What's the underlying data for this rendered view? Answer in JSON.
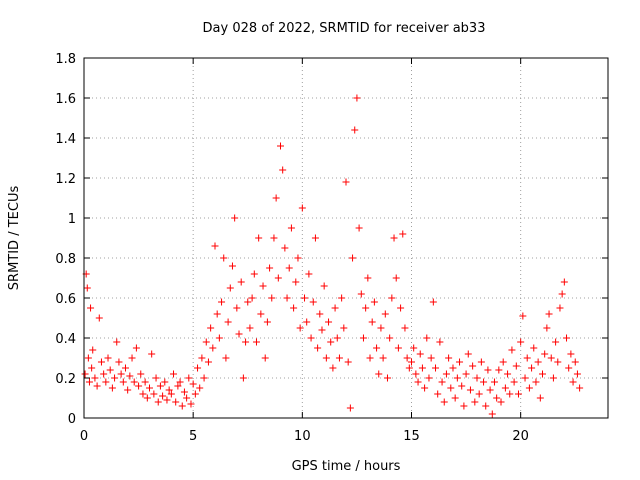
{
  "chart_data": {
    "type": "scatter",
    "title": "Day 028 of 2022, SRMTID for receiver ab33",
    "xlabel": "GPS time / hours",
    "ylabel": "SRMTID / TECUs",
    "xlim": [
      0,
      24
    ],
    "ylim": [
      0,
      1.8
    ],
    "x_ticks": [
      0,
      5,
      10,
      15,
      20
    ],
    "x_tick_labels": [
      "0",
      "5",
      "10",
      "15",
      "20"
    ],
    "y_ticks": [
      0,
      0.2,
      0.4,
      0.6,
      0.8,
      1.0,
      1.2,
      1.4,
      1.6,
      1.8
    ],
    "y_tick_labels": [
      "0",
      "0.2",
      "0.4",
      "0.6",
      "0.8",
      "1",
      "1.2",
      "1.4",
      "1.6",
      "1.8"
    ],
    "grid": true,
    "marker": "+",
    "series": [
      {
        "name": "SRMTID",
        "color": "#ff0000",
        "points": [
          [
            0.05,
            0.22
          ],
          [
            0.1,
            0.72
          ],
          [
            0.15,
            0.65
          ],
          [
            0.2,
            0.3
          ],
          [
            0.25,
            0.18
          ],
          [
            0.3,
            0.55
          ],
          [
            0.35,
            0.25
          ],
          [
            0.4,
            0.34
          ],
          [
            0.5,
            0.2
          ],
          [
            0.6,
            0.16
          ],
          [
            0.7,
            0.5
          ],
          [
            0.8,
            0.28
          ],
          [
            0.9,
            0.22
          ],
          [
            1.0,
            0.18
          ],
          [
            1.1,
            0.3
          ],
          [
            1.2,
            0.24
          ],
          [
            1.3,
            0.15
          ],
          [
            1.4,
            0.2
          ],
          [
            1.5,
            0.38
          ],
          [
            1.6,
            0.28
          ],
          [
            1.7,
            0.22
          ],
          [
            1.8,
            0.18
          ],
          [
            1.9,
            0.25
          ],
          [
            2.0,
            0.14
          ],
          [
            2.1,
            0.21
          ],
          [
            2.2,
            0.3
          ],
          [
            2.3,
            0.18
          ],
          [
            2.4,
            0.35
          ],
          [
            2.5,
            0.16
          ],
          [
            2.6,
            0.22
          ],
          [
            2.7,
            0.12
          ],
          [
            2.8,
            0.18
          ],
          [
            2.9,
            0.1
          ],
          [
            3.0,
            0.15
          ],
          [
            3.1,
            0.32
          ],
          [
            3.2,
            0.12
          ],
          [
            3.3,
            0.2
          ],
          [
            3.4,
            0.08
          ],
          [
            3.5,
            0.16
          ],
          [
            3.6,
            0.11
          ],
          [
            3.7,
            0.18
          ],
          [
            3.8,
            0.09
          ],
          [
            3.9,
            0.14
          ],
          [
            4.0,
            0.12
          ],
          [
            4.1,
            0.22
          ],
          [
            4.2,
            0.08
          ],
          [
            4.3,
            0.16
          ],
          [
            4.4,
            0.18
          ],
          [
            4.5,
            0.06
          ],
          [
            4.6,
            0.13
          ],
          [
            4.7,
            0.1
          ],
          [
            4.8,
            0.2
          ],
          [
            4.9,
            0.07
          ],
          [
            5.0,
            0.17
          ],
          [
            5.1,
            0.12
          ],
          [
            5.2,
            0.25
          ],
          [
            5.3,
            0.15
          ],
          [
            5.4,
            0.3
          ],
          [
            5.5,
            0.2
          ],
          [
            5.6,
            0.38
          ],
          [
            5.7,
            0.28
          ],
          [
            5.8,
            0.45
          ],
          [
            5.9,
            0.35
          ],
          [
            6.0,
            0.86
          ],
          [
            6.1,
            0.52
          ],
          [
            6.2,
            0.4
          ],
          [
            6.3,
            0.58
          ],
          [
            6.4,
            0.8
          ],
          [
            6.5,
            0.3
          ],
          [
            6.6,
            0.48
          ],
          [
            6.7,
            0.65
          ],
          [
            6.8,
            0.76
          ],
          [
            6.9,
            1.0
          ],
          [
            7.0,
            0.55
          ],
          [
            7.1,
            0.42
          ],
          [
            7.2,
            0.68
          ],
          [
            7.3,
            0.2
          ],
          [
            7.4,
            0.38
          ],
          [
            7.5,
            0.58
          ],
          [
            7.6,
            0.45
          ],
          [
            7.7,
            0.6
          ],
          [
            7.8,
            0.72
          ],
          [
            7.9,
            0.38
          ],
          [
            8.0,
            0.9
          ],
          [
            8.1,
            0.52
          ],
          [
            8.2,
            0.66
          ],
          [
            8.3,
            0.3
          ],
          [
            8.4,
            0.48
          ],
          [
            8.5,
            0.75
          ],
          [
            8.6,
            0.6
          ],
          [
            8.7,
            0.9
          ],
          [
            8.8,
            1.1
          ],
          [
            8.9,
            0.7
          ],
          [
            9.0,
            1.36
          ],
          [
            9.1,
            1.24
          ],
          [
            9.2,
            0.85
          ],
          [
            9.3,
            0.6
          ],
          [
            9.4,
            0.75
          ],
          [
            9.5,
            0.95
          ],
          [
            9.6,
            0.55
          ],
          [
            9.7,
            0.68
          ],
          [
            9.8,
            0.8
          ],
          [
            9.9,
            0.45
          ],
          [
            10.0,
            1.05
          ],
          [
            10.1,
            0.6
          ],
          [
            10.2,
            0.48
          ],
          [
            10.3,
            0.72
          ],
          [
            10.4,
            0.4
          ],
          [
            10.5,
            0.58
          ],
          [
            10.6,
            0.9
          ],
          [
            10.7,
            0.35
          ],
          [
            10.8,
            0.52
          ],
          [
            10.9,
            0.44
          ],
          [
            11.0,
            0.66
          ],
          [
            11.1,
            0.3
          ],
          [
            11.2,
            0.48
          ],
          [
            11.3,
            0.38
          ],
          [
            11.4,
            0.25
          ],
          [
            11.5,
            0.55
          ],
          [
            11.6,
            0.4
          ],
          [
            11.7,
            0.3
          ],
          [
            11.8,
            0.6
          ],
          [
            11.9,
            0.45
          ],
          [
            12.0,
            1.18
          ],
          [
            12.1,
            0.28
          ],
          [
            12.2,
            0.05
          ],
          [
            12.3,
            0.8
          ],
          [
            12.4,
            1.44
          ],
          [
            12.5,
            1.6
          ],
          [
            12.6,
            0.95
          ],
          [
            12.7,
            0.62
          ],
          [
            12.8,
            0.4
          ],
          [
            12.9,
            0.55
          ],
          [
            13.0,
            0.7
          ],
          [
            13.1,
            0.3
          ],
          [
            13.2,
            0.48
          ],
          [
            13.3,
            0.58
          ],
          [
            13.4,
            0.35
          ],
          [
            13.5,
            0.22
          ],
          [
            13.6,
            0.45
          ],
          [
            13.7,
            0.3
          ],
          [
            13.8,
            0.52
          ],
          [
            13.9,
            0.2
          ],
          [
            14.0,
            0.4
          ],
          [
            14.1,
            0.6
          ],
          [
            14.2,
            0.9
          ],
          [
            14.3,
            0.7
          ],
          [
            14.4,
            0.35
          ],
          [
            14.5,
            0.55
          ],
          [
            14.6,
            0.92
          ],
          [
            14.7,
            0.45
          ],
          [
            14.8,
            0.3
          ],
          [
            14.9,
            0.25
          ],
          [
            15.0,
            0.28
          ],
          [
            15.1,
            0.35
          ],
          [
            15.2,
            0.22
          ],
          [
            15.3,
            0.18
          ],
          [
            15.4,
            0.32
          ],
          [
            15.5,
            0.25
          ],
          [
            15.6,
            0.15
          ],
          [
            15.7,
            0.4
          ],
          [
            15.8,
            0.2
          ],
          [
            15.9,
            0.3
          ],
          [
            16.0,
            0.58
          ],
          [
            16.1,
            0.25
          ],
          [
            16.2,
            0.12
          ],
          [
            16.3,
            0.38
          ],
          [
            16.4,
            0.18
          ],
          [
            16.5,
            0.08
          ],
          [
            16.6,
            0.22
          ],
          [
            16.7,
            0.3
          ],
          [
            16.8,
            0.15
          ],
          [
            16.9,
            0.25
          ],
          [
            17.0,
            0.1
          ],
          [
            17.1,
            0.2
          ],
          [
            17.2,
            0.28
          ],
          [
            17.3,
            0.16
          ],
          [
            17.4,
            0.06
          ],
          [
            17.5,
            0.22
          ],
          [
            17.6,
            0.32
          ],
          [
            17.7,
            0.14
          ],
          [
            17.8,
            0.26
          ],
          [
            17.9,
            0.08
          ],
          [
            18.0,
            0.2
          ],
          [
            18.1,
            0.12
          ],
          [
            18.2,
            0.28
          ],
          [
            18.3,
            0.18
          ],
          [
            18.4,
            0.06
          ],
          [
            18.5,
            0.24
          ],
          [
            18.6,
            0.14
          ],
          [
            18.7,
            0.02
          ],
          [
            18.8,
            0.18
          ],
          [
            18.9,
            0.1
          ],
          [
            19.0,
            0.24
          ],
          [
            19.1,
            0.08
          ],
          [
            19.2,
            0.28
          ],
          [
            19.3,
            0.15
          ],
          [
            19.4,
            0.22
          ],
          [
            19.5,
            0.12
          ],
          [
            19.6,
            0.34
          ],
          [
            19.7,
            0.18
          ],
          [
            19.8,
            0.26
          ],
          [
            19.9,
            0.12
          ],
          [
            20.0,
            0.38
          ],
          [
            20.1,
            0.51
          ],
          [
            20.2,
            0.2
          ],
          [
            20.3,
            0.3
          ],
          [
            20.4,
            0.15
          ],
          [
            20.5,
            0.25
          ],
          [
            20.6,
            0.35
          ],
          [
            20.7,
            0.18
          ],
          [
            20.8,
            0.28
          ],
          [
            20.9,
            0.1
          ],
          [
            21.0,
            0.22
          ],
          [
            21.1,
            0.32
          ],
          [
            21.2,
            0.45
          ],
          [
            21.3,
            0.52
          ],
          [
            21.4,
            0.3
          ],
          [
            21.5,
            0.2
          ],
          [
            21.6,
            0.38
          ],
          [
            21.7,
            0.28
          ],
          [
            21.8,
            0.55
          ],
          [
            21.9,
            0.62
          ],
          [
            22.0,
            0.68
          ],
          [
            22.1,
            0.4
          ],
          [
            22.2,
            0.25
          ],
          [
            22.3,
            0.32
          ],
          [
            22.4,
            0.18
          ],
          [
            22.5,
            0.28
          ],
          [
            22.6,
            0.22
          ],
          [
            22.7,
            0.15
          ]
        ]
      }
    ]
  }
}
